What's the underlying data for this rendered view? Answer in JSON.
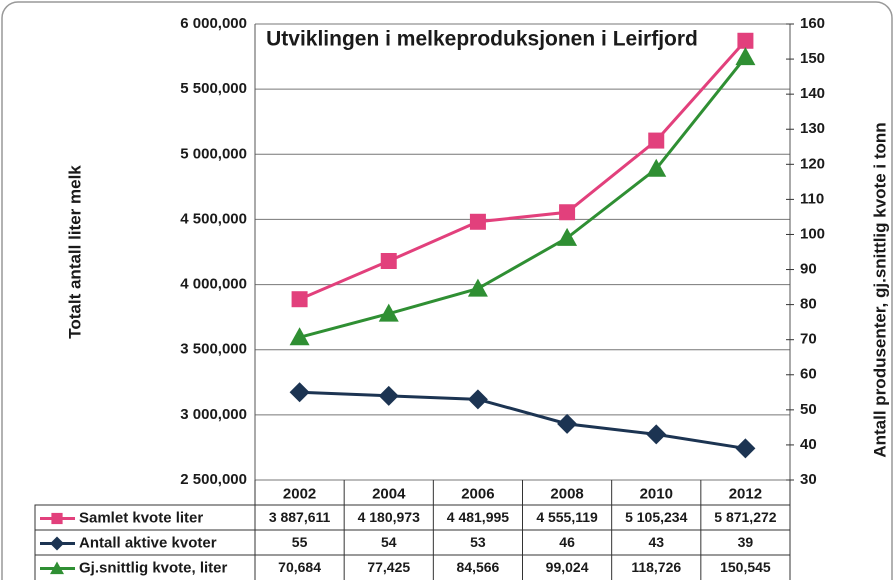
{
  "chart_data": {
    "type": "line",
    "title": "Utviklingen i melkeproduksjonen i Leirfjord",
    "y_label": "Totalt antall liter melk",
    "y2_label": "Antall produsenter, gj.snittlig kvote i tonn",
    "categories": [
      "2002",
      "2004",
      "2006",
      "2008",
      "2010",
      "2012"
    ],
    "series": [
      {
        "name": "Samlet kvote liter",
        "color": "#e2407c",
        "marker": "square",
        "values": [
          3887611,
          4180973,
          4481995,
          4555119,
          5105234,
          5871272
        ],
        "value_labels": [
          "3 887,611",
          "4 180,973",
          "4 481,995",
          "4 555,119",
          "5 105,234",
          "5 871,272"
        ]
      },
      {
        "name": "Antall aktive kvoter",
        "color": "#1c3452",
        "marker": "diamond",
        "axis": "y2",
        "values": [
          55,
          54,
          53,
          46,
          43,
          39
        ]
      },
      {
        "name": "Gj.snittlig kvote, liter",
        "color": "#2f8f33",
        "marker": "triangle",
        "axis": "y2",
        "values": [
          70.684,
          77.425,
          84.566,
          99.024,
          118.726,
          150.545
        ],
        "value_labels": [
          "70,684",
          "77,425",
          "84,566",
          "99,024",
          "118,726",
          "150,545"
        ]
      }
    ],
    "ylim": [
      2500000,
      6000000
    ],
    "yticks": [
      {
        "value": 2500000,
        "label": "2 500,000"
      },
      {
        "value": 3000000,
        "label": "3 000,000"
      },
      {
        "value": 3500000,
        "label": "3 500,000"
      },
      {
        "value": 4000000,
        "label": "4 000,000"
      },
      {
        "value": 4500000,
        "label": "4 500,000"
      },
      {
        "value": 5000000,
        "label": "5 000,000"
      },
      {
        "value": 5500000,
        "label": "5 500,000"
      },
      {
        "value": 6000000,
        "label": "6 000,000"
      }
    ],
    "y2lim": [
      30,
      160
    ],
    "y2ticks": [
      30,
      40,
      50,
      60,
      70,
      80,
      90,
      100,
      110,
      120,
      130,
      140,
      150,
      160
    ],
    "grid": true
  }
}
